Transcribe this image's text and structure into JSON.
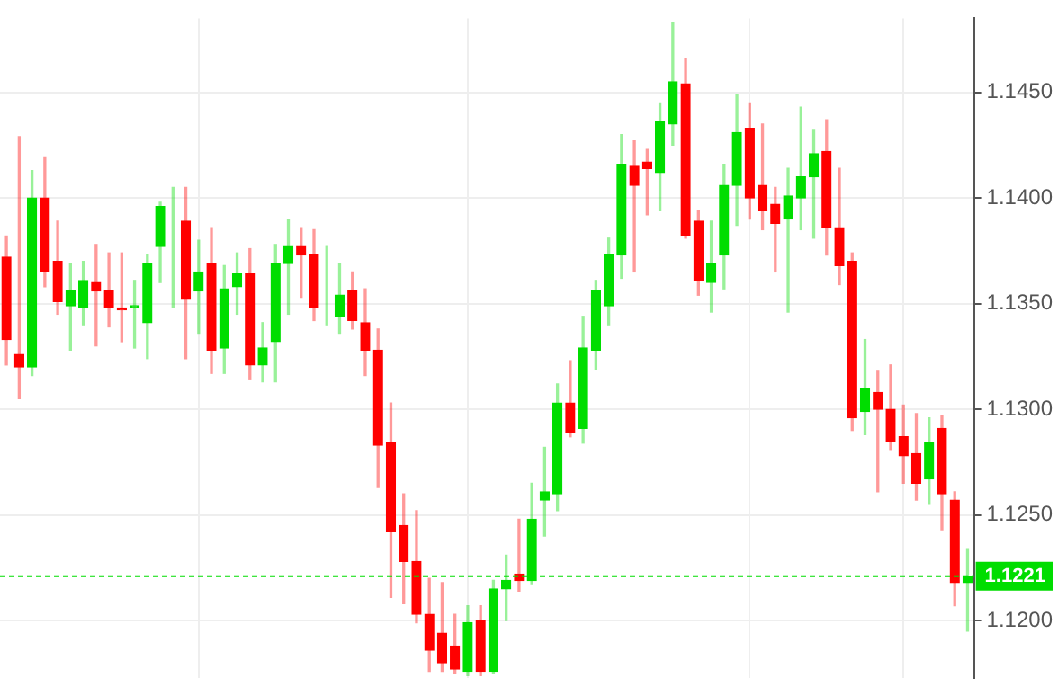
{
  "chart_data": {
    "type": "candlestick",
    "categories": [
      null,
      null,
      null,
      null,
      null,
      null,
      null,
      null,
      null,
      null,
      null,
      null,
      null,
      null,
      null,
      null,
      null,
      null,
      null,
      null,
      null,
      null,
      null,
      null,
      null,
      null,
      null,
      null,
      null,
      null,
      null,
      null,
      null,
      null,
      null,
      null,
      null,
      null,
      null,
      null,
      null,
      null,
      null,
      null,
      null,
      null,
      null,
      null,
      null,
      null,
      null,
      null,
      null,
      null,
      null,
      null,
      null,
      null,
      null,
      null,
      null,
      null,
      null,
      null,
      null,
      null,
      null,
      null,
      null,
      null,
      null,
      null,
      null,
      null,
      null,
      null
    ],
    "ohlc": [
      [
        1.1372,
        1.1382,
        1.1321,
        1.1333
      ],
      [
        1.1326,
        1.1429,
        1.1305,
        1.132
      ],
      [
        1.132,
        1.1413,
        1.1316,
        1.14
      ],
      [
        1.14,
        1.1419,
        1.1358,
        1.1365
      ],
      [
        1.137,
        1.1389,
        1.1345,
        1.1351
      ],
      [
        1.1349,
        1.1369,
        1.1328,
        1.1356
      ],
      [
        1.1348,
        1.137,
        1.134,
        1.1361
      ],
      [
        1.136,
        1.1378,
        1.133,
        1.1356
      ],
      [
        1.1356,
        1.1374,
        1.1339,
        1.1348
      ],
      [
        1.1348,
        1.1374,
        1.1332,
        1.1347
      ],
      [
        1.1348,
        1.1361,
        1.1329,
        1.1349
      ],
      [
        1.1341,
        1.1373,
        1.1324,
        1.1369
      ],
      [
        1.1377,
        1.1398,
        1.136,
        1.1396
      ],
      [
        1.1386,
        1.1405,
        1.1348,
        1.1386
      ],
      [
        1.1389,
        1.1405,
        1.1324,
        1.1352
      ],
      [
        1.1356,
        1.138,
        1.1336,
        1.1365
      ],
      [
        1.1369,
        1.1386,
        1.1317,
        1.1328
      ],
      [
        1.1329,
        1.1368,
        1.1317,
        1.1357
      ],
      [
        1.1358,
        1.1374,
        1.1345,
        1.1364
      ],
      [
        1.1364,
        1.1376,
        1.1314,
        1.1321
      ],
      [
        1.1321,
        1.1341,
        1.1313,
        1.1329
      ],
      [
        1.1332,
        1.1378,
        1.1313,
        1.1369
      ],
      [
        1.1369,
        1.139,
        1.1345,
        1.1377
      ],
      [
        1.1377,
        1.1386,
        1.1353,
        1.1373
      ],
      [
        1.1373,
        1.1385,
        1.1342,
        1.1348
      ],
      [
        1.1348,
        1.1377,
        1.134,
        1.1348
      ],
      [
        1.1344,
        1.1369,
        1.1336,
        1.1354
      ],
      [
        1.1356,
        1.1365,
        1.1338,
        1.1342
      ],
      [
        1.1341,
        1.1357,
        1.1316,
        1.1328
      ],
      [
        1.1328,
        1.1338,
        1.1263,
        1.1283
      ],
      [
        1.1284,
        1.1303,
        1.1211,
        1.1242
      ],
      [
        1.1245,
        1.126,
        1.1208,
        1.1228
      ],
      [
        1.1228,
        1.1252,
        1.1199,
        1.1203
      ],
      [
        1.1203,
        1.122,
        1.1176,
        1.1186
      ],
      [
        1.1194,
        1.1218,
        1.1176,
        1.118
      ],
      [
        1.1188,
        1.1203,
        1.1175,
        1.1177
      ],
      [
        1.1176,
        1.1207,
        1.1174,
        1.1199
      ],
      [
        1.12,
        1.1207,
        1.1174,
        1.1176
      ],
      [
        1.1176,
        1.1219,
        1.1175,
        1.1215
      ],
      [
        1.1215,
        1.1231,
        1.12,
        1.1219
      ],
      [
        1.1222,
        1.1248,
        1.1214,
        1.1219
      ],
      [
        1.1219,
        1.1265,
        1.1217,
        1.1248
      ],
      [
        1.1257,
        1.1282,
        1.124,
        1.1261
      ],
      [
        1.126,
        1.1312,
        1.1252,
        1.1303
      ],
      [
        1.1303,
        1.1323,
        1.1287,
        1.1289
      ],
      [
        1.1291,
        1.1344,
        1.1284,
        1.1329
      ],
      [
        1.1328,
        1.1361,
        1.1319,
        1.1356
      ],
      [
        1.1349,
        1.1381,
        1.134,
        1.1373
      ],
      [
        1.1373,
        1.143,
        1.1362,
        1.1416
      ],
      [
        1.1415,
        1.1427,
        1.1365,
        1.1406
      ],
      [
        1.1417,
        1.1423,
        1.1392,
        1.1414
      ],
      [
        1.1412,
        1.1445,
        1.1394,
        1.1436
      ],
      [
        1.1435,
        1.1483,
        1.1425,
        1.1455
      ],
      [
        1.1454,
        1.1466,
        1.1381,
        1.1382
      ],
      [
        1.1389,
        1.1394,
        1.1354,
        1.1361
      ],
      [
        1.136,
        1.1389,
        1.1346,
        1.1369
      ],
      [
        1.1373,
        1.1416,
        1.1357,
        1.1406
      ],
      [
        1.1406,
        1.1449,
        1.1387,
        1.1431
      ],
      [
        1.1433,
        1.1445,
        1.139,
        1.14
      ],
      [
        1.1406,
        1.1435,
        1.1385,
        1.1394
      ],
      [
        1.1397,
        1.1405,
        1.1365,
        1.1388
      ],
      [
        1.139,
        1.1414,
        1.1346,
        1.1401
      ],
      [
        1.14,
        1.1443,
        1.1385,
        1.141
      ],
      [
        1.141,
        1.1432,
        1.1381,
        1.1421
      ],
      [
        1.1422,
        1.1437,
        1.1373,
        1.1386
      ],
      [
        1.1386,
        1.1414,
        1.1359,
        1.1368
      ],
      [
        1.137,
        1.1374,
        1.129,
        1.1296
      ],
      [
        1.1299,
        1.1333,
        1.1288,
        1.131
      ],
      [
        1.1308,
        1.1318,
        1.1261,
        1.13
      ],
      [
        1.13,
        1.1321,
        1.1281,
        1.1285
      ],
      [
        1.1287,
        1.1302,
        1.1265,
        1.1278
      ],
      [
        1.1279,
        1.1298,
        1.1257,
        1.1265
      ],
      [
        1.1267,
        1.1296,
        1.1255,
        1.1284
      ],
      [
        1.1291,
        1.1297,
        1.1243,
        1.126
      ],
      [
        1.1257,
        1.1261,
        1.1207,
        1.1218
      ],
      [
        1.1218,
        1.1234,
        1.1195,
        1.1221
      ]
    ],
    "colors": [
      "#ff0000",
      "#ff0000",
      "#00dd00",
      "#ff0000",
      "#ff0000",
      "#00dd00",
      "#00dd00",
      "#ff0000",
      "#ff0000",
      "#ff0000",
      "#00dd00",
      "#00dd00",
      "#00dd00",
      "#00dd00",
      "#ff0000",
      "#00dd00",
      "#ff0000",
      "#00dd00",
      "#00dd00",
      "#ff0000",
      "#00dd00",
      "#00dd00",
      "#00dd00",
      "#ff0000",
      "#ff0000",
      "#00dd00",
      "#00dd00",
      "#ff0000",
      "#ff0000",
      "#ff0000",
      "#ff0000",
      "#ff0000",
      "#ff0000",
      "#ff0000",
      "#ff0000",
      "#ff0000",
      "#00dd00",
      "#ff0000",
      "#00dd00",
      "#00dd00",
      "#ff0000",
      "#00dd00",
      "#00dd00",
      "#00dd00",
      "#ff0000",
      "#00dd00",
      "#00dd00",
      "#00dd00",
      "#00dd00",
      "#ff0000",
      "#ff0000",
      "#00dd00",
      "#00dd00",
      "#ff0000",
      "#ff0000",
      "#00dd00",
      "#00dd00",
      "#00dd00",
      "#ff0000",
      "#ff0000",
      "#ff0000",
      "#00dd00",
      "#00dd00",
      "#00dd00",
      "#ff0000",
      "#ff0000",
      "#ff0000",
      "#00dd00",
      "#ff0000",
      "#ff0000",
      "#ff0000",
      "#ff0000",
      "#00dd00",
      "#ff0000",
      "#ff0000",
      "#00dd00"
    ],
    "ylim": [
      1.1173,
      1.1485
    ],
    "yticks": [
      {
        "value": 1.12,
        "label": "1.1200"
      },
      {
        "value": 1.125,
        "label": "1.1250"
      },
      {
        "value": 1.13,
        "label": "1.1300"
      },
      {
        "value": 1.135,
        "label": "1.1350"
      },
      {
        "value": 1.14,
        "label": "1.1400"
      },
      {
        "value": 1.145,
        "label": "1.1450"
      }
    ],
    "ref_lines": [
      {
        "axis": "y",
        "value": 1.1221,
        "label": "1.1221",
        "color": "#00dd00",
        "line_style": "dashed"
      }
    ],
    "grid": true,
    "tick_labels": "y",
    "legend": false
  }
}
